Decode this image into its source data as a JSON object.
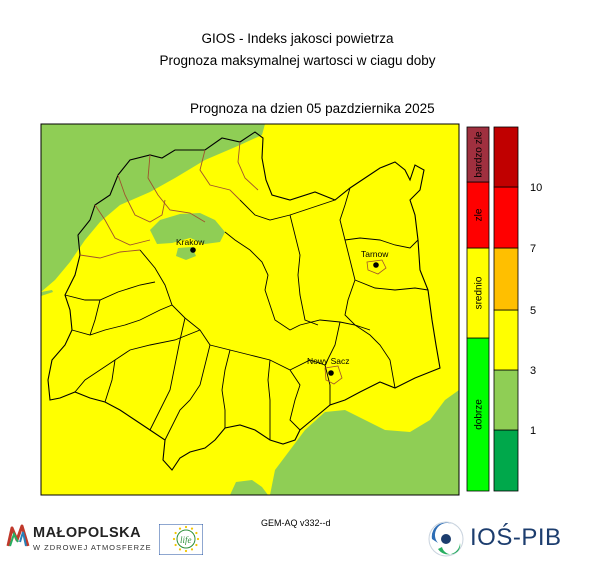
{
  "header": {
    "title": "GIOS - Indeks jakosci powietrza",
    "subtitle": "Prognoza maksymalnej wartosci w ciagu doby",
    "forecast_date": "Prognoza na dzien  05 pazdziernika 2025"
  },
  "map": {
    "cities": [
      {
        "name": "Krakow"
      },
      {
        "name": "Tarnow"
      },
      {
        "name": "Nowy Sacz"
      }
    ],
    "colors": {
      "background": "#ffff00",
      "green_areas": "#8fce55",
      "admin_borders_outer": "#000000",
      "admin_borders_inner": "#a0522d"
    }
  },
  "legend": {
    "categories": [
      {
        "label": "dobrze",
        "color": "#00ff00"
      },
      {
        "label": "srednio",
        "color": "#ffff00"
      },
      {
        "label": "zle",
        "color": "#ff0000"
      },
      {
        "label": "bardzo zle",
        "color": "#a0303f"
      }
    ],
    "scale_colors": [
      "#00a84b",
      "#8fce55",
      "#ffff00",
      "#ffbf00",
      "#ff0000",
      "#c00000"
    ],
    "ticks": [
      "1",
      "3",
      "5",
      "7",
      "10"
    ]
  },
  "footer": {
    "model": "GEM-AQ v332--d",
    "malopolska_name": "MAŁOPOLSKA",
    "malopolska_sub": "W ZDROWEJ ATMOSFERZE",
    "eu_life_text": "life",
    "iospib_text": "IOŚ-PIB"
  }
}
